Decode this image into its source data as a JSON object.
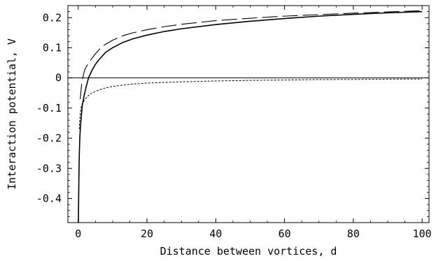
{
  "chart_data": {
    "type": "line",
    "title": "",
    "xlabel": "Distance between vortices, d",
    "ylabel": "Interaction potential, V",
    "xlim": [
      -3,
      102
    ],
    "ylim": [
      -0.48,
      0.24
    ],
    "xticks": [
      0,
      20,
      40,
      60,
      80,
      100
    ],
    "xtick_labels": [
      "0",
      "20",
      "40",
      "60",
      "80",
      "100"
    ],
    "yticks": [
      0.2,
      0.1,
      0,
      -0.1,
      -0.2,
      -0.3,
      -0.4
    ],
    "ytick_labels": [
      "0.2",
      "0.1",
      "0",
      "-0.1",
      "-0.2",
      "-0.3",
      "-0.4"
    ],
    "grid": false,
    "legend": "none",
    "zero_line": true,
    "series": [
      {
        "style": "solid",
        "color": "#000000",
        "points": [
          [
            0.05,
            -0.48
          ],
          [
            0.1,
            -0.43
          ],
          [
            0.2,
            -0.33
          ],
          [
            0.3,
            -0.26
          ],
          [
            0.5,
            -0.19
          ],
          [
            0.8,
            -0.14
          ],
          [
            1.2,
            -0.09
          ],
          [
            1.7,
            -0.06
          ],
          [
            2.3,
            -0.03
          ],
          [
            3,
            0.0
          ],
          [
            4,
            0.025
          ],
          [
            5,
            0.045
          ],
          [
            6,
            0.06
          ],
          [
            8,
            0.085
          ],
          [
            10,
            0.1
          ],
          [
            13,
            0.118
          ],
          [
            16,
            0.13
          ],
          [
            20,
            0.142
          ],
          [
            25,
            0.154
          ],
          [
            30,
            0.163
          ],
          [
            40,
            0.177
          ],
          [
            50,
            0.188
          ],
          [
            60,
            0.197
          ],
          [
            70,
            0.205
          ],
          [
            80,
            0.211
          ],
          [
            90,
            0.216
          ],
          [
            100,
            0.22
          ]
        ]
      },
      {
        "style": "long-dash",
        "color": "#000000",
        "points": [
          [
            0.6,
            -0.07
          ],
          [
            1,
            -0.02
          ],
          [
            1.5,
            0.01
          ],
          [
            2,
            0.03
          ],
          [
            3,
            0.05
          ],
          [
            5,
            0.08
          ],
          [
            7,
            0.105
          ],
          [
            10,
            0.125
          ],
          [
            13,
            0.14
          ],
          [
            16,
            0.15
          ],
          [
            20,
            0.16
          ],
          [
            25,
            0.17
          ],
          [
            30,
            0.178
          ],
          [
            40,
            0.19
          ],
          [
            50,
            0.198
          ],
          [
            60,
            0.205
          ],
          [
            70,
            0.21
          ],
          [
            80,
            0.215
          ],
          [
            90,
            0.219
          ],
          [
            100,
            0.223
          ]
        ]
      },
      {
        "style": "dotted",
        "color": "#000000",
        "points": [
          [
            0.3,
            -0.17
          ],
          [
            0.5,
            -0.13
          ],
          [
            0.8,
            -0.1
          ],
          [
            1.2,
            -0.085
          ],
          [
            2,
            -0.07
          ],
          [
            3,
            -0.058
          ],
          [
            4,
            -0.05
          ],
          [
            6,
            -0.04
          ],
          [
            8,
            -0.033
          ],
          [
            10,
            -0.028
          ],
          [
            15,
            -0.021
          ],
          [
            20,
            -0.017
          ],
          [
            30,
            -0.013
          ],
          [
            40,
            -0.01
          ],
          [
            50,
            -0.008
          ],
          [
            60,
            -0.007
          ],
          [
            70,
            -0.0055
          ],
          [
            80,
            -0.005
          ],
          [
            90,
            -0.004
          ],
          [
            100,
            -0.0035
          ]
        ]
      }
    ]
  }
}
